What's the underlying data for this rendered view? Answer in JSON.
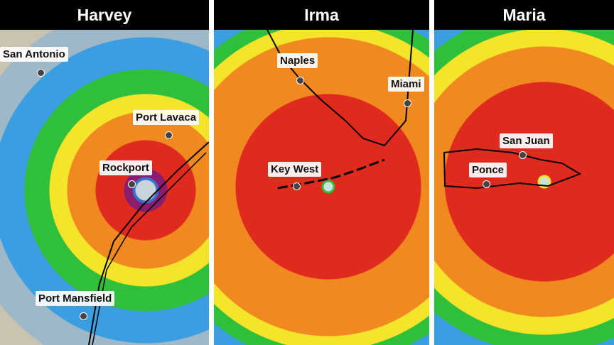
{
  "panels": [
    {
      "title": "Harvey",
      "cities": [
        "San Antonio",
        "Port Lavaca",
        "Rockport",
        "Port Mansfield"
      ]
    },
    {
      "title": "Irma",
      "cities": [
        "Naples",
        "Miami",
        "Key West"
      ]
    },
    {
      "title": "Maria",
      "cities": [
        "San Juan",
        "Ponce"
      ]
    }
  ],
  "colors": {
    "title_bar": "#000000",
    "rain_light": "#3a9ee0",
    "rain_moderate": "#2fbf3a",
    "rain_heavy": "#f5e52a",
    "rain_very_heavy": "#f08a20",
    "rain_extreme": "#e02a1e",
    "rain_max": "#8a1d6e"
  }
}
